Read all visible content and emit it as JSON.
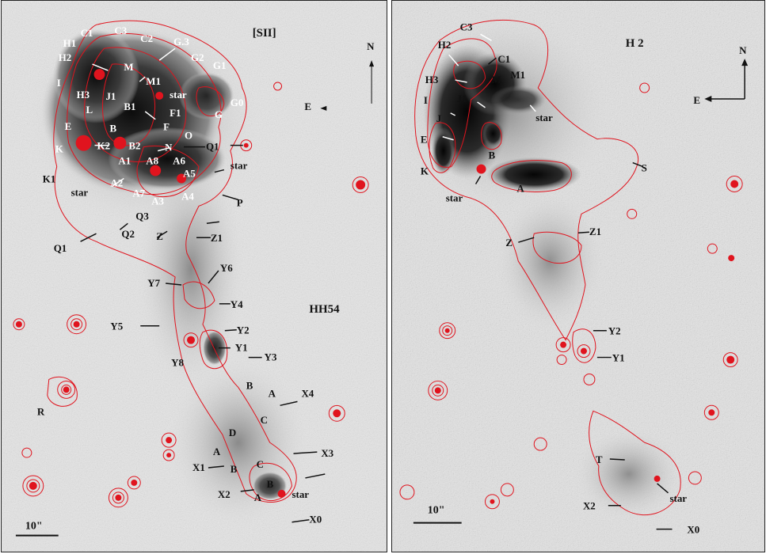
{
  "left_panel": {
    "title": "[SII]",
    "object_label": "HH54",
    "compass": {
      "north": "N",
      "east": "E"
    },
    "scale_bar": "10\"",
    "white_labels": [
      "C1",
      "C3",
      "C2",
      "H1",
      "H2",
      "I",
      "H3",
      "J1",
      "L",
      "B1",
      "M",
      "M1",
      "star",
      "G.3",
      "G2",
      "G1",
      "G0",
      "G",
      "F1",
      "F",
      "B",
      "E",
      "K",
      "K2",
      "B2",
      "N",
      "O",
      "A1",
      "A8",
      "A6",
      "A5",
      "A2",
      "A7",
      "A3",
      "A4"
    ],
    "black_labels": [
      "Q1",
      "star",
      "P",
      "K1",
      "star",
      "Q3",
      "Q2",
      "Z",
      "Z1",
      "Q1",
      "Y6",
      "Y7",
      "Y4",
      "Y5",
      "Y2",
      "Y1",
      "Y3",
      "Y8",
      "R",
      "B",
      "A",
      "X4",
      "C",
      "D",
      "X3",
      "A",
      "X1",
      "B",
      "C",
      "A",
      "X2",
      "B",
      "star",
      "X0"
    ]
  },
  "right_panel": {
    "title": "H 2",
    "compass": {
      "north": "N",
      "east": "E"
    },
    "scale_bar": "10\"",
    "labels": [
      "C3",
      "H2",
      "C1",
      "H3",
      "M",
      "M1",
      "I",
      "J1",
      "J",
      "star",
      "E",
      "B",
      "K",
      "S",
      "star",
      "A",
      "Z",
      "Z1",
      "Y2",
      "Y1",
      "T",
      "star",
      "X2",
      "X0"
    ]
  },
  "colors": {
    "background_gray": "#ececec",
    "nebula_dark": "#141414",
    "contour_red": "#e0141e"
  }
}
